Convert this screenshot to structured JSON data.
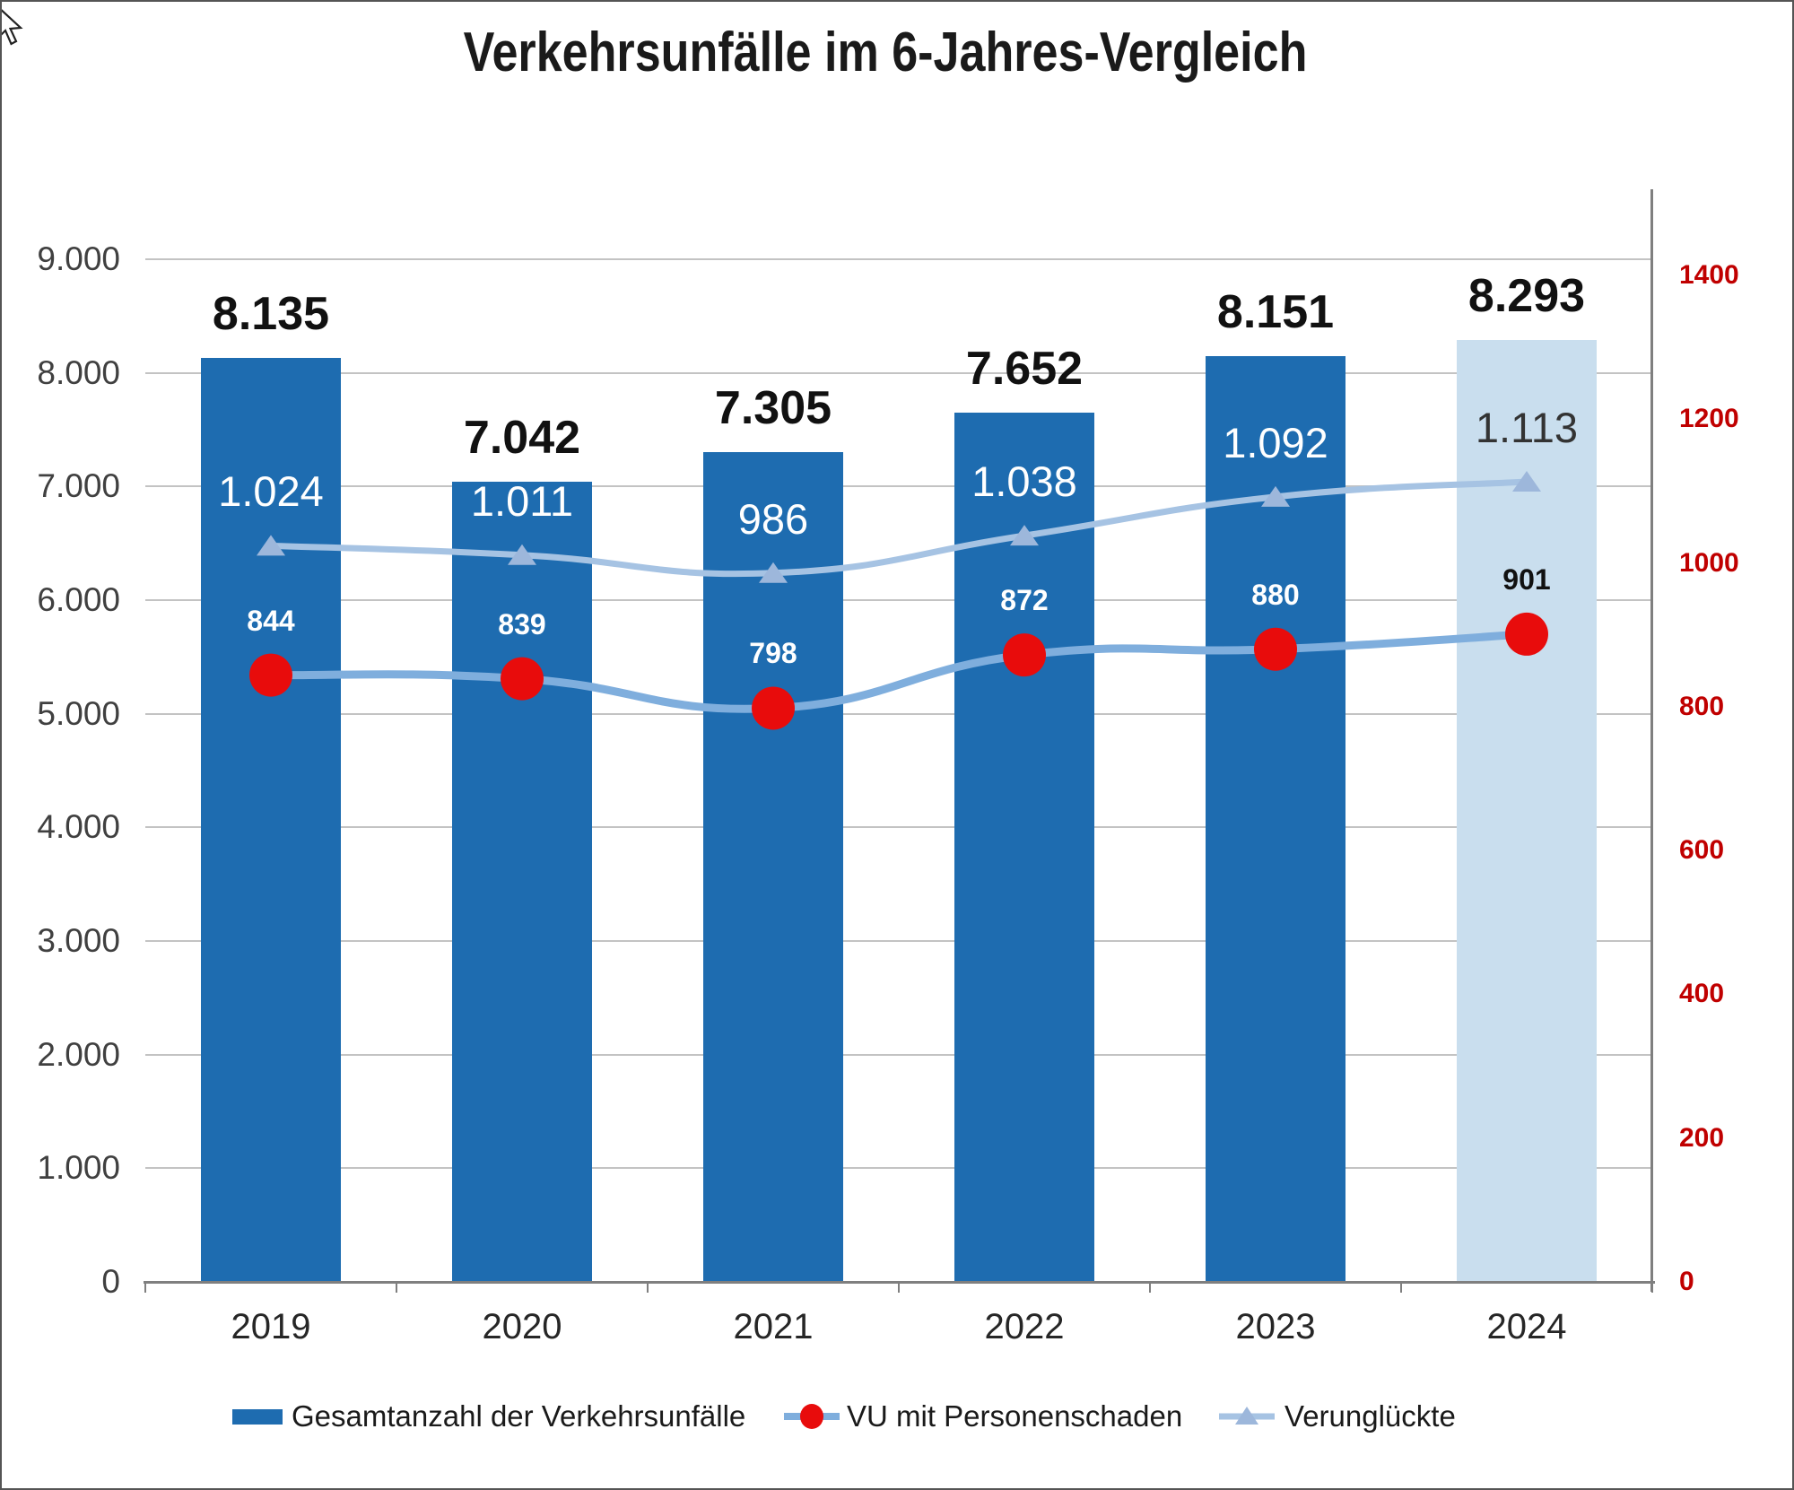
{
  "title": "Verkehrsunfälle im 6-Jahres-Vergleich",
  "chart_data": {
    "type": "bar",
    "subtype": "combo-bar-line",
    "categories": [
      "2019",
      "2020",
      "2021",
      "2022",
      "2023",
      "2024"
    ],
    "series": [
      {
        "name": "Gesamtanzahl der Verkehrsunfälle",
        "type": "bar",
        "axis": "left",
        "values": [
          8135,
          7042,
          7305,
          7652,
          8151,
          8293
        ],
        "labels": [
          "8.135",
          "7.042",
          "7.305",
          "7.652",
          "8.151",
          "8.293"
        ]
      },
      {
        "name": "VU mit Personenschaden",
        "type": "line",
        "axis": "right",
        "values": [
          844,
          839,
          798,
          872,
          880,
          901
        ],
        "labels": [
          "844",
          "839",
          "798",
          "872",
          "880",
          "901"
        ]
      },
      {
        "name": "Verunglückte",
        "type": "line",
        "axis": "right",
        "values": [
          1024,
          1011,
          986,
          1038,
          1092,
          1113
        ],
        "labels": [
          "1.024",
          "1.011",
          "986",
          "1.038",
          "1.092",
          "1.113"
        ]
      }
    ],
    "left_axis": {
      "min": 0,
      "max": 9000,
      "step": 1000,
      "tick_labels": [
        "9.000",
        "8.000",
        "7.000",
        "6.000",
        "5.000",
        "4.000",
        "3.000",
        "2.000",
        "1.000",
        "0"
      ],
      "tick_values": [
        9000,
        8000,
        7000,
        6000,
        5000,
        4000,
        3000,
        2000,
        1000,
        0
      ]
    },
    "right_axis": {
      "min": 0,
      "max": 1400,
      "step": 200,
      "tick_labels": [
        "1400",
        "1200",
        "1000",
        "800",
        "600",
        "400",
        "200",
        "0"
      ],
      "tick_values": [
        1400,
        1200,
        1000,
        800,
        600,
        400,
        200,
        0
      ]
    },
    "highlight_last_category": true,
    "grid": true,
    "legend_position": "bottom"
  },
  "colors": {
    "bar": "#1e6cb0",
    "bar_highlight": "#c9deee",
    "line_vu": "#7faedd",
    "marker_vu": "#e80c0c",
    "line_verungl": "#a6c3e3",
    "marker_verungl": "#9db7db",
    "right_axis_text": "#c00000",
    "axis_text": "#404040",
    "gridline": "#c3c3c3",
    "axis_line": "#7f7f7f",
    "bar_label": "#111111",
    "inner_label_light": "#ffffff",
    "inner_label_dark": "#333333"
  },
  "legend": {
    "items": [
      {
        "label": "Gesamtanzahl der Verkehrsunfälle",
        "marker": "bar-swatch"
      },
      {
        "label": "VU mit Personenschaden",
        "marker": "red-dot-line"
      },
      {
        "label": "Verunglückte",
        "marker": "triangle-line"
      }
    ]
  }
}
